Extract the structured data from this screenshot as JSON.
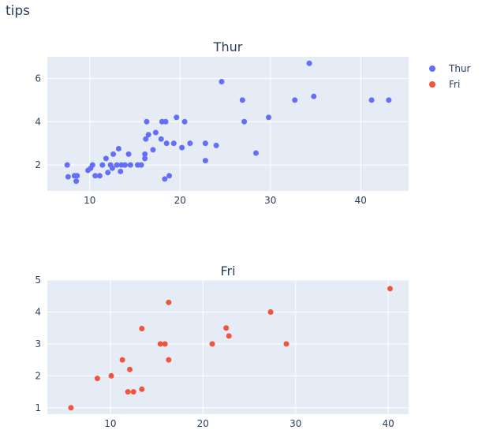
{
  "figure_title": "tips",
  "chart_data": [
    {
      "type": "scatter",
      "title": "Thur",
      "xlabel": "",
      "ylabel": "",
      "xlim": [
        5.3,
        45.3
      ],
      "ylim": [
        0.8,
        7.0
      ],
      "xticks": [
        10,
        20,
        30,
        40
      ],
      "yticks": [
        2,
        4,
        6
      ],
      "grid": true,
      "series": [
        {
          "name": "Thur",
          "color": "#636efa",
          "points": [
            [
              7.5,
              2.0
            ],
            [
              7.6,
              1.45
            ],
            [
              8.3,
              1.5
            ],
            [
              8.5,
              1.25
            ],
            [
              8.6,
              1.5
            ],
            [
              9.8,
              1.75
            ],
            [
              10.1,
              1.85
            ],
            [
              10.3,
              2.0
            ],
            [
              10.6,
              1.5
            ],
            [
              11.1,
              1.5
            ],
            [
              11.4,
              2.0
            ],
            [
              11.8,
              2.3
            ],
            [
              12.0,
              1.65
            ],
            [
              12.3,
              2.0
            ],
            [
              12.5,
              1.85
            ],
            [
              12.6,
              2.5
            ],
            [
              13.0,
              2.0
            ],
            [
              13.2,
              2.75
            ],
            [
              13.4,
              1.7
            ],
            [
              13.5,
              2.0
            ],
            [
              13.9,
              2.0
            ],
            [
              14.3,
              2.5
            ],
            [
              14.5,
              2.0
            ],
            [
              15.3,
              2.0
            ],
            [
              15.7,
              2.0
            ],
            [
              16.1,
              2.5
            ],
            [
              16.1,
              2.3
            ],
            [
              16.2,
              3.2
            ],
            [
              16.3,
              4.0
            ],
            [
              16.5,
              3.4
            ],
            [
              17.0,
              2.7
            ],
            [
              17.3,
              3.5
            ],
            [
              17.9,
              3.2
            ],
            [
              18.0,
              4.0
            ],
            [
              18.3,
              1.35
            ],
            [
              18.4,
              4.0
            ],
            [
              18.5,
              3.0
            ],
            [
              18.8,
              1.5
            ],
            [
              19.3,
              3.0
            ],
            [
              19.6,
              4.2
            ],
            [
              20.2,
              2.8
            ],
            [
              20.5,
              4.0
            ],
            [
              21.1,
              3.0
            ],
            [
              22.8,
              3.0
            ],
            [
              22.8,
              2.2
            ],
            [
              24.0,
              2.9
            ],
            [
              24.6,
              5.85
            ],
            [
              26.9,
              5.0
            ],
            [
              27.1,
              4.0
            ],
            [
              28.4,
              2.55
            ],
            [
              29.8,
              4.2
            ],
            [
              32.7,
              5.0
            ],
            [
              34.3,
              6.7
            ],
            [
              34.8,
              5.17
            ],
            [
              41.2,
              5.0
            ],
            [
              43.1,
              5.0
            ]
          ]
        }
      ]
    },
    {
      "type": "scatter",
      "title": "Fri",
      "xlabel": "",
      "ylabel": "",
      "xlim": [
        3.2,
        42.2
      ],
      "ylim": [
        0.8,
        5.0
      ],
      "xticks": [
        10,
        20,
        30,
        40
      ],
      "yticks": [
        1,
        2,
        3,
        4,
        5
      ],
      "grid": true,
      "series": [
        {
          "name": "Fri",
          "color": "#ef553b",
          "points": [
            [
              5.75,
              1.0
            ],
            [
              8.6,
              1.92
            ],
            [
              10.1,
              2.0
            ],
            [
              11.3,
              2.5
            ],
            [
              11.9,
              1.5
            ],
            [
              12.1,
              2.2
            ],
            [
              12.5,
              1.5
            ],
            [
              13.4,
              1.58
            ],
            [
              13.4,
              3.48
            ],
            [
              15.4,
              3.0
            ],
            [
              15.9,
              3.0
            ],
            [
              16.3,
              2.5
            ],
            [
              16.3,
              4.3
            ],
            [
              21.0,
              3.0
            ],
            [
              22.5,
              3.5
            ],
            [
              22.8,
              3.25
            ],
            [
              27.3,
              4.0
            ],
            [
              29.0,
              3.0
            ],
            [
              40.2,
              4.73
            ]
          ]
        }
      ]
    }
  ],
  "legend": {
    "position": "top-right",
    "items": [
      {
        "label": "Thur",
        "color": "#636efa"
      },
      {
        "label": "Fri",
        "color": "#ef553b"
      }
    ]
  },
  "colors": {
    "plot_bg": "#e5ecf6",
    "grid": "#ffffff",
    "text": "#2a3f5f"
  }
}
